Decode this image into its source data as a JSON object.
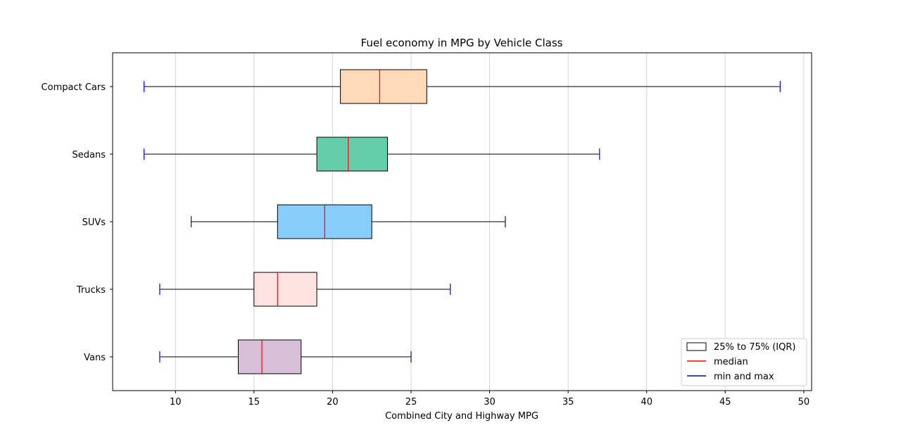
{
  "chart_data": {
    "type": "boxplot",
    "orientation": "horizontal",
    "title": "Fuel economy in MPG by Vehicle Class",
    "xlabel": "Combined City and Highway MPG",
    "ylabel": "",
    "xlim": [
      6,
      50.5
    ],
    "xticks": [
      10,
      15,
      20,
      25,
      30,
      35,
      40,
      45,
      50
    ],
    "grid": "vertical",
    "legend_position": "bottom-right",
    "categories": [
      "Compact Cars",
      "Sedans",
      "SUVs",
      "Trucks",
      "Vans"
    ],
    "boxes": [
      {
        "category": "Compact Cars",
        "min": 8,
        "q1": 20.5,
        "median": 23,
        "q3": 26,
        "max": 48.5,
        "color": "#ffdab9"
      },
      {
        "category": "Sedans",
        "min": 8,
        "q1": 19,
        "median": 21,
        "q3": 23.5,
        "max": 37,
        "color": "#66cdaa"
      },
      {
        "category": "SUVs",
        "min": 11,
        "q1": 16.5,
        "median": 19.5,
        "q3": 22.5,
        "max": 31,
        "color": "#87cefa"
      },
      {
        "category": "Trucks",
        "min": 9,
        "q1": 15,
        "median": 16.5,
        "q3": 19,
        "max": 27.5,
        "color": "#ffe4e1"
      },
      {
        "category": "Vans",
        "min": 9,
        "q1": 14,
        "median": 15.5,
        "q3": 18,
        "max": 25,
        "color": "#d8bfd8"
      }
    ],
    "legend": [
      {
        "label": "25% to 75% (IQR)",
        "kind": "box",
        "color": "#000000"
      },
      {
        "label": "median",
        "kind": "line",
        "color": "#ff0000"
      },
      {
        "label": "min and max",
        "kind": "line",
        "color": "#0000ff"
      }
    ],
    "median_color": "#ff0000",
    "cap_color": "#0000ff",
    "grid_color": "#d3d3d3"
  }
}
